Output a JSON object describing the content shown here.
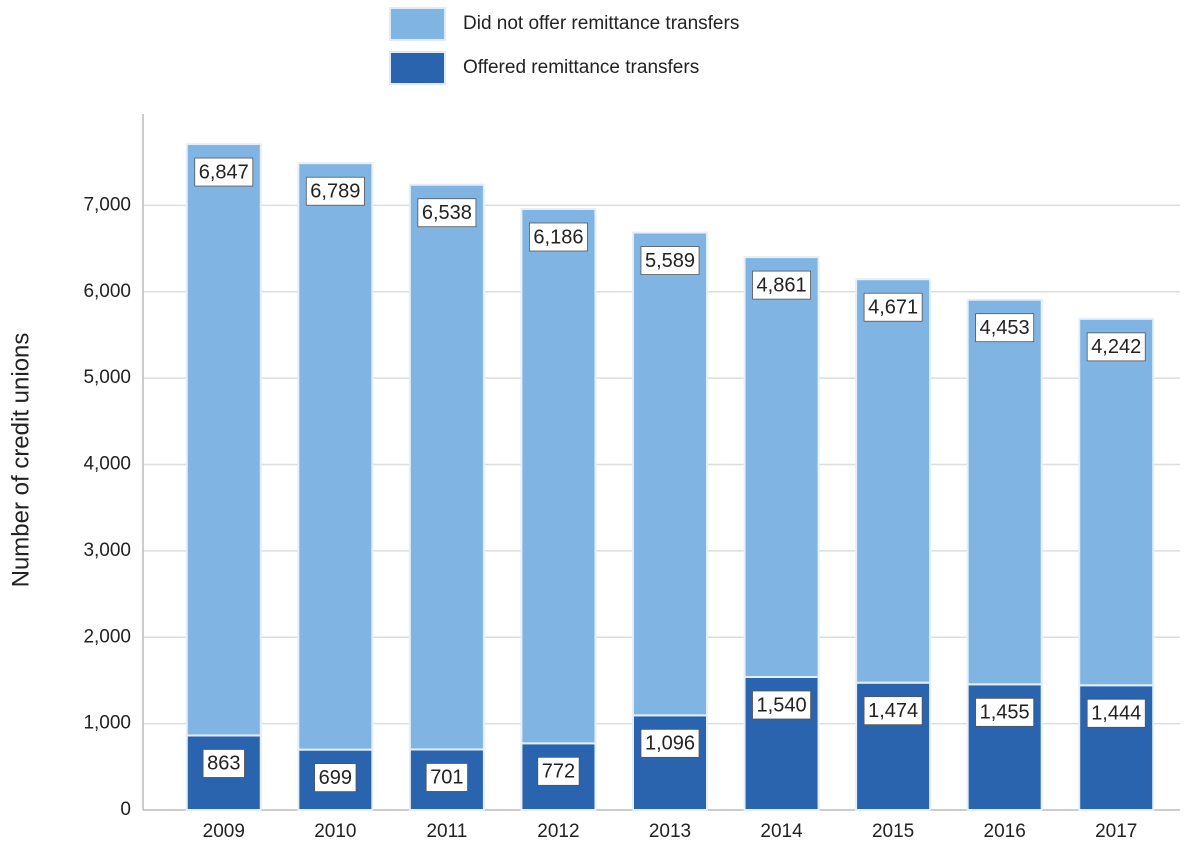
{
  "chart_data": {
    "type": "stacked_bar",
    "y_label": "Number of credit unions",
    "categories": [
      "2009",
      "2010",
      "2011",
      "2012",
      "2013",
      "2014",
      "2015",
      "2016",
      "2017"
    ],
    "series": [
      {
        "name": "Offered remittance transfers",
        "color": "#2a63ae",
        "values": [
          863,
          699,
          701,
          772,
          1096,
          1540,
          1474,
          1455,
          1444
        ],
        "value_labels": [
          "863",
          "699",
          "701",
          "772",
          "1,096",
          "1,540",
          "1,474",
          "1,455",
          "1,444"
        ]
      },
      {
        "name": "Did not offer remittance transfers",
        "color": "#7fb4e3",
        "values": [
          6847,
          6789,
          6538,
          6186,
          5589,
          4861,
          4671,
          4453,
          4242
        ],
        "value_labels": [
          "6,847",
          "6,789",
          "6,538",
          "6,186",
          "5,589",
          "4,861",
          "4,671",
          "4,453",
          "4,242"
        ]
      }
    ],
    "ylim": [
      0,
      8000
    ],
    "yticks": [
      0,
      {
        "value": 1000,
        "label": "1,000"
      },
      {
        "value": 2000,
        "label": "2,000"
      },
      {
        "value": 3000,
        "label": "3,000"
      },
      {
        "value": 4000,
        "label": "4,000"
      },
      {
        "value": 5000,
        "label": "5,000"
      },
      {
        "value": 6000,
        "label": "6,000"
      },
      {
        "value": 7000,
        "label": "7,000"
      }
    ],
    "grid": true
  }
}
